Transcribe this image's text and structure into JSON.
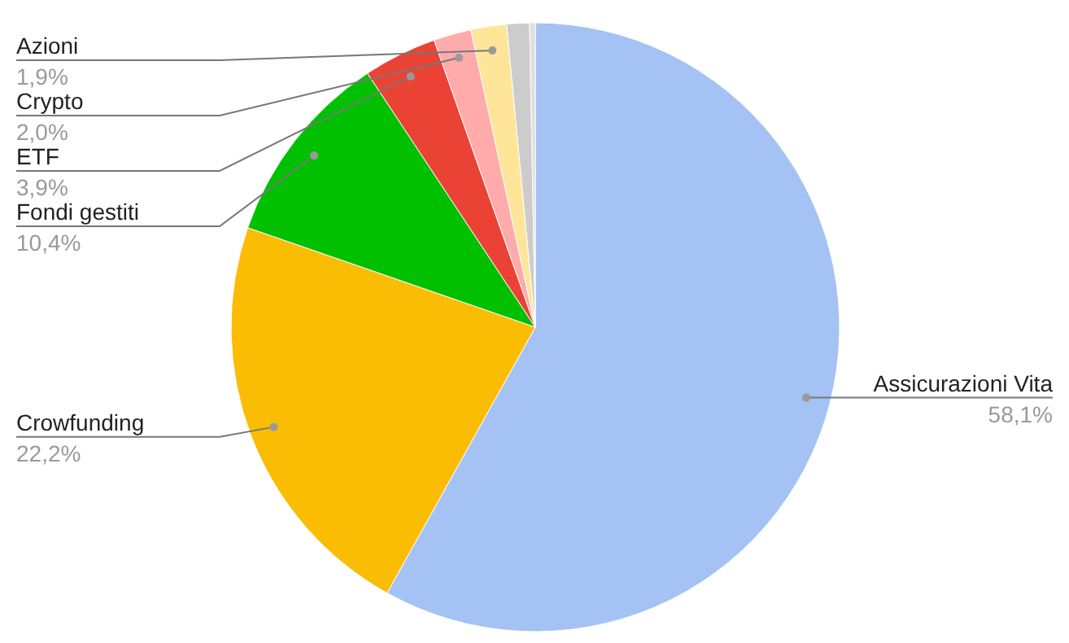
{
  "chart_data": {
    "type": "pie",
    "categories": [
      "Assicurazioni Vita",
      "Crowfunding",
      "Fondi gestiti",
      "ETF",
      "Crypto",
      "Azioni",
      null,
      null
    ],
    "values": [
      58.1,
      22.2,
      10.4,
      3.9,
      2.0,
      1.9,
      1.2,
      0.3
    ],
    "value_labels": [
      "58,1%",
      "22,2%",
      "10,4%",
      "3,9%",
      "2,0%",
      "1,9%",
      null,
      null
    ],
    "colors": [
      "#a4c2f4",
      "#fbbc04",
      "#00c000",
      "#ea4335",
      "#ffabab",
      "#ffe599",
      "#cccccc",
      "#e0e0e0"
    ]
  }
}
